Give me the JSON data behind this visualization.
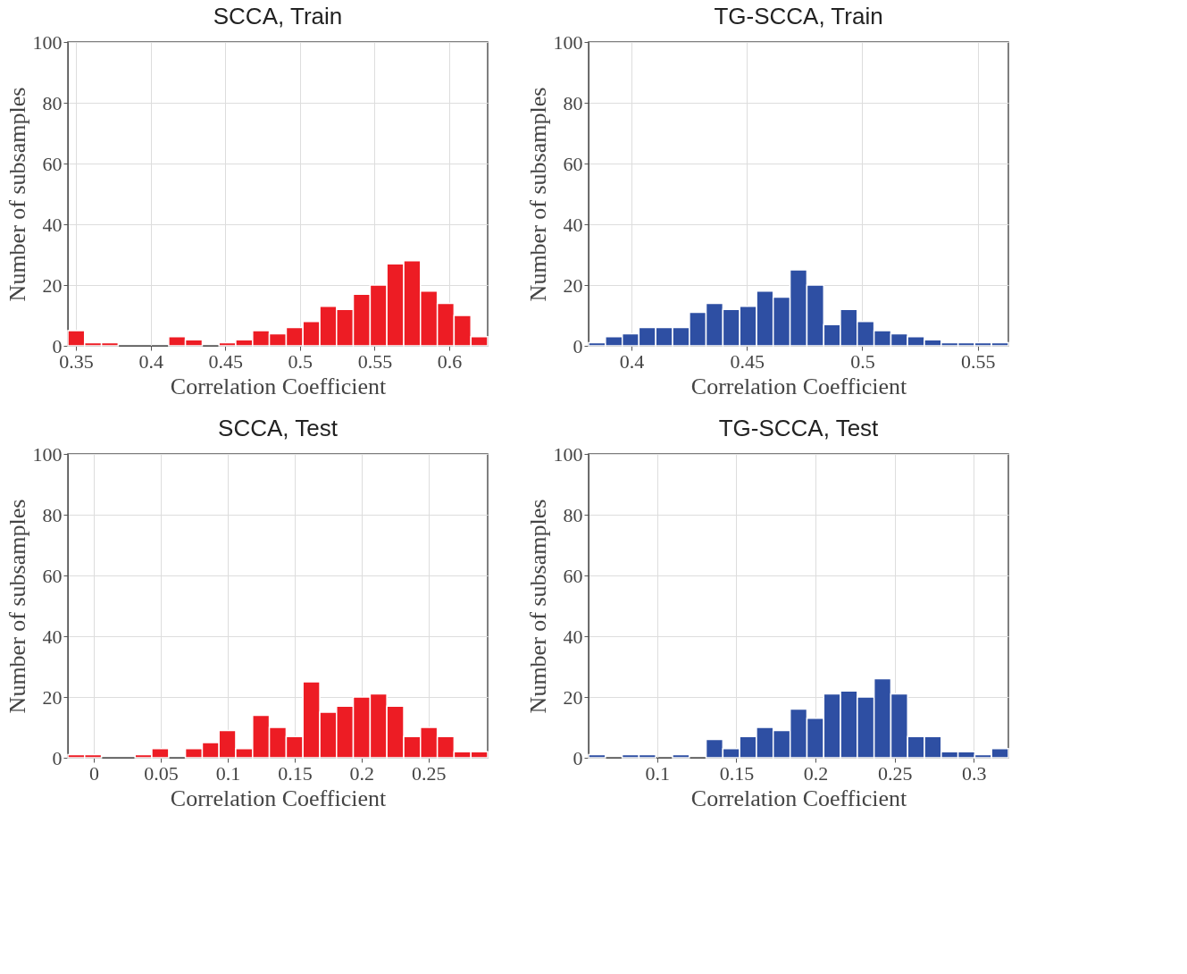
{
  "chart_data": [
    {
      "type": "histogram",
      "title": "SCCA, Train",
      "xlabel": "Correlation Coefficient",
      "ylabel": "Number of subsamples",
      "color": "#ed1c24",
      "grid": true,
      "bins": [
        0.3446,
        0.3558,
        0.3671,
        0.3783,
        0.3896,
        0.4008,
        0.4121,
        0.4233,
        0.4346,
        0.4458,
        0.457,
        0.4683,
        0.4795,
        0.4908,
        0.502,
        0.5133,
        0.5245,
        0.5357,
        0.547,
        0.5582,
        0.5695,
        0.5807,
        0.592,
        0.6032,
        0.6145,
        0.6257
      ],
      "values": [
        5,
        1,
        1,
        0,
        0,
        0,
        3,
        2,
        0,
        1,
        2,
        5,
        4,
        6,
        8,
        13,
        12,
        17,
        20,
        27,
        28,
        18,
        14,
        10,
        3
      ],
      "xlim": [
        0.3446,
        0.6257
      ],
      "xticks": [
        0.35,
        0.4,
        0.45,
        0.5,
        0.55,
        0.6
      ],
      "ylim": [
        0,
        100
      ],
      "yticks": [
        0,
        20,
        40,
        60,
        80,
        100
      ]
    },
    {
      "type": "histogram",
      "title": "TG-SCCA, Train",
      "xlabel": "Correlation Coefficient",
      "ylabel": "Number of subsamples",
      "color": "#2e4fa3",
      "grid": true,
      "bins": [
        0.3814,
        0.3887,
        0.396,
        0.4032,
        0.4105,
        0.4178,
        0.4251,
        0.4323,
        0.4396,
        0.4469,
        0.4542,
        0.4614,
        0.4687,
        0.476,
        0.4833,
        0.4905,
        0.4978,
        0.5051,
        0.5124,
        0.5196,
        0.5269,
        0.5342,
        0.5415,
        0.5487,
        0.556,
        0.5633
      ],
      "values": [
        1,
        3,
        4,
        6,
        6,
        6,
        11,
        14,
        12,
        13,
        18,
        16,
        25,
        20,
        7,
        12,
        8,
        5,
        4,
        3,
        2,
        1,
        1,
        1,
        1
      ],
      "xlim": [
        0.3814,
        0.5633
      ],
      "xticks": [
        0.4,
        0.45,
        0.5,
        0.55
      ],
      "ylim": [
        0,
        100
      ],
      "yticks": [
        0,
        20,
        40,
        60,
        80,
        100
      ]
    },
    {
      "type": "histogram",
      "title": "SCCA, Test",
      "xlabel": "Correlation Coefficient",
      "ylabel": "Number of subsamples",
      "color": "#ed1c24",
      "grid": true,
      "bins": [
        -0.0194,
        -0.0069,
        0.0057,
        0.0182,
        0.0308,
        0.0433,
        0.0559,
        0.0684,
        0.081,
        0.0935,
        0.106,
        0.1186,
        0.1311,
        0.1437,
        0.1562,
        0.1688,
        0.1813,
        0.1938,
        0.2064,
        0.2189,
        0.2315,
        0.244,
        0.2566,
        0.2691,
        0.2817,
        0.2942
      ],
      "values": [
        1,
        1,
        0,
        0,
        1,
        3,
        0,
        3,
        5,
        9,
        3,
        14,
        10,
        7,
        25,
        15,
        17,
        20,
        21,
        17,
        7,
        10,
        7,
        2,
        2
      ],
      "xlim": [
        -0.0194,
        0.2942
      ],
      "xticks": [
        0,
        0.05,
        0.1,
        0.15,
        0.2,
        0.25
      ],
      "ylim": [
        0,
        100
      ],
      "yticks": [
        0,
        20,
        40,
        60,
        80,
        100
      ]
    },
    {
      "type": "histogram",
      "title": "TG-SCCA, Test",
      "xlabel": "Correlation Coefficient",
      "ylabel": "Number of subsamples",
      "color": "#2e4fa3",
      "grid": true,
      "bins": [
        0.0567,
        0.0673,
        0.0779,
        0.0885,
        0.0991,
        0.1097,
        0.1203,
        0.1309,
        0.1415,
        0.1521,
        0.1627,
        0.1733,
        0.184,
        0.1946,
        0.2052,
        0.2158,
        0.2264,
        0.237,
        0.2476,
        0.2582,
        0.2688,
        0.2794,
        0.29,
        0.3006,
        0.3112,
        0.3218
      ],
      "values": [
        1,
        0,
        1,
        1,
        0,
        1,
        0,
        6,
        3,
        7,
        10,
        9,
        16,
        13,
        21,
        22,
        20,
        26,
        21,
        7,
        7,
        2,
        2,
        1,
        3
      ],
      "xlim": [
        0.0567,
        0.3218
      ],
      "xticks": [
        0.1,
        0.15,
        0.2,
        0.25,
        0.3
      ],
      "ylim": [
        0,
        100
      ],
      "yticks": [
        0,
        20,
        40,
        60,
        80,
        100
      ]
    }
  ]
}
